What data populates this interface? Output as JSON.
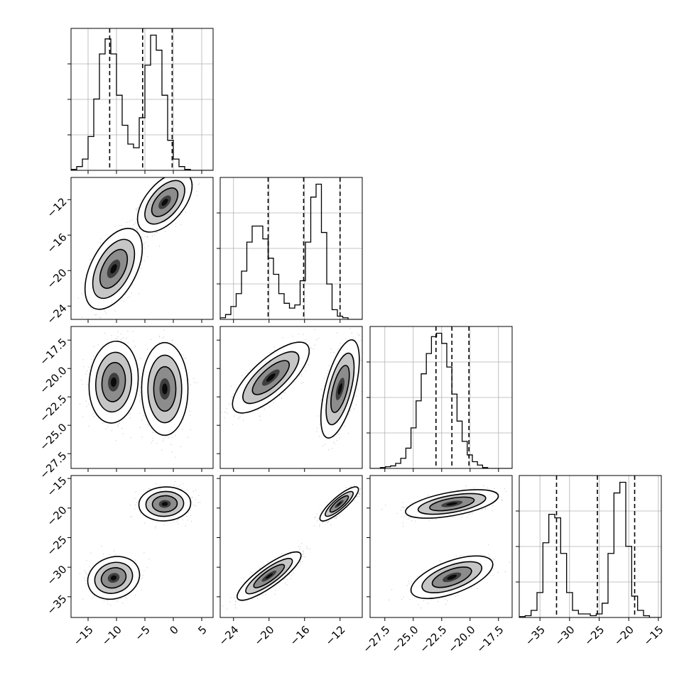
{
  "chart_data": {
    "type": "corner",
    "title": "",
    "parameters": [
      {
        "key": "p1",
        "range": [
          -18,
          7
        ],
        "ticks": [
          {
            "v": -15,
            "label": "−15"
          },
          {
            "v": -10,
            "label": "−10"
          },
          {
            "v": -5,
            "label": "−5"
          },
          {
            "v": 0,
            "label": "0"
          },
          {
            "v": 5,
            "label": "5"
          }
        ],
        "quantiles": [
          -11.2,
          -5.4,
          -0.2
        ]
      },
      {
        "key": "p2",
        "range": [
          -25.5,
          -9.5
        ],
        "ticks": [
          {
            "v": -24,
            "label": "−24"
          },
          {
            "v": -20,
            "label": "−20"
          },
          {
            "v": -16,
            "label": "−16"
          },
          {
            "v": -12,
            "label": "−12"
          }
        ],
        "quantiles": [
          -20.1,
          -16.1,
          -12.0
        ]
      },
      {
        "key": "p3",
        "range": [
          -28.8,
          -16.3
        ],
        "ticks": [
          {
            "v": -27.5,
            "label": "−27.5"
          },
          {
            "v": -25,
            "label": "−25.0"
          },
          {
            "v": -22.5,
            "label": "−22.5"
          },
          {
            "v": -20,
            "label": "−20.0"
          },
          {
            "v": -17.5,
            "label": "−17.5"
          }
        ],
        "quantiles": [
          -23.0,
          -21.6,
          -20.1
        ]
      },
      {
        "key": "p4",
        "range": [
          -38.5,
          -14.5
        ],
        "ticks": [
          {
            "v": -35,
            "label": "−35"
          },
          {
            "v": -30,
            "label": "−30"
          },
          {
            "v": -25,
            "label": "−25"
          },
          {
            "v": -20,
            "label": "−20"
          },
          {
            "v": -15,
            "label": "−15"
          }
        ],
        "quantiles": [
          -32.2,
          -25.3,
          -19.0
        ]
      }
    ],
    "histograms": [
      {
        "param": 0,
        "bin_width": 1.0,
        "bin_start": -18,
        "counts": [
          0.5,
          2,
          6,
          18,
          38,
          62,
          70,
          62,
          40,
          24,
          14,
          12,
          28,
          56,
          72,
          64,
          40,
          16,
          6,
          2,
          0.5,
          0,
          0,
          0,
          0
        ]
      },
      {
        "param": 1,
        "bin_width": 0.6,
        "bin_start": -25.5,
        "counts": [
          1,
          3,
          8,
          16,
          30,
          48,
          58,
          58,
          50,
          38,
          28,
          16,
          10,
          7,
          9,
          24,
          48,
          76,
          84,
          54,
          22,
          6,
          2,
          1,
          0,
          0,
          0
        ]
      },
      {
        "param": 2,
        "bin_width": 0.45,
        "bin_start": -28.8,
        "counts": [
          0,
          0,
          0.5,
          1,
          1.5,
          3,
          6,
          12,
          24,
          40,
          56,
          68,
          78,
          80,
          74,
          60,
          44,
          28,
          16,
          8,
          4,
          2,
          0.5,
          0,
          0,
          0,
          0,
          0
        ]
      },
      {
        "param": 3,
        "bin_width": 1.0,
        "bin_start": -38.5,
        "counts": [
          0.5,
          1,
          4,
          14,
          42,
          58,
          56,
          36,
          14,
          4,
          2,
          2,
          1,
          2,
          8,
          36,
          70,
          76,
          40,
          12,
          4,
          1,
          0,
          0
        ]
      }
    ],
    "pairs": [
      {
        "x": 0,
        "y": 1,
        "clusters": [
          {
            "center": [
              -1.5,
              -12.3
            ],
            "sd": [
              2.0,
              1.4
            ],
            "rho": 0.55
          },
          {
            "center": [
              -10.5,
              -19.8
            ],
            "sd": [
              2.1,
              1.9
            ],
            "rho": 0.5
          }
        ]
      },
      {
        "x": 0,
        "y": 2,
        "clusters": [
          {
            "center": [
              -10.5,
              -21.2
            ],
            "sd": [
              1.8,
              1.5
            ],
            "rho": 0.1
          },
          {
            "center": [
              -1.5,
              -21.8
            ],
            "sd": [
              1.7,
              1.7
            ],
            "rho": 0.0
          }
        ]
      },
      {
        "x": 1,
        "y": 2,
        "clusters": [
          {
            "center": [
              -19.8,
              -20.8
            ],
            "sd": [
              1.8,
              1.3
            ],
            "rho": 0.75
          },
          {
            "center": [
              -12.0,
              -21.8
            ],
            "sd": [
              0.9,
              1.8
            ],
            "rho": 0.6
          }
        ]
      },
      {
        "x": 0,
        "y": 3,
        "clusters": [
          {
            "center": [
              -1.5,
              -19.3
            ],
            "sd": [
              1.9,
              1.2
            ],
            "rho": 0.05
          },
          {
            "center": [
              -10.5,
              -31.8
            ],
            "sd": [
              1.9,
              1.5
            ],
            "rho": 0.15
          }
        ]
      },
      {
        "x": 1,
        "y": 3,
        "clusters": [
          {
            "center": [
              -12.1,
              -19.3
            ],
            "sd": [
              0.9,
              1.2
            ],
            "rho": 0.85
          },
          {
            "center": [
              -20.0,
              -31.5
            ],
            "sd": [
              1.5,
              1.7
            ],
            "rho": 0.85
          }
        ]
      },
      {
        "x": 2,
        "y": 3,
        "clusters": [
          {
            "center": [
              -21.6,
              -19.3
            ],
            "sd": [
              1.7,
              1.0
            ],
            "rho": 0.55
          },
          {
            "center": [
              -21.6,
              -31.7
            ],
            "sd": [
              1.5,
              1.5
            ],
            "rho": 0.6
          }
        ]
      }
    ],
    "grid": true,
    "xlabel": "",
    "ylabel": ""
  }
}
